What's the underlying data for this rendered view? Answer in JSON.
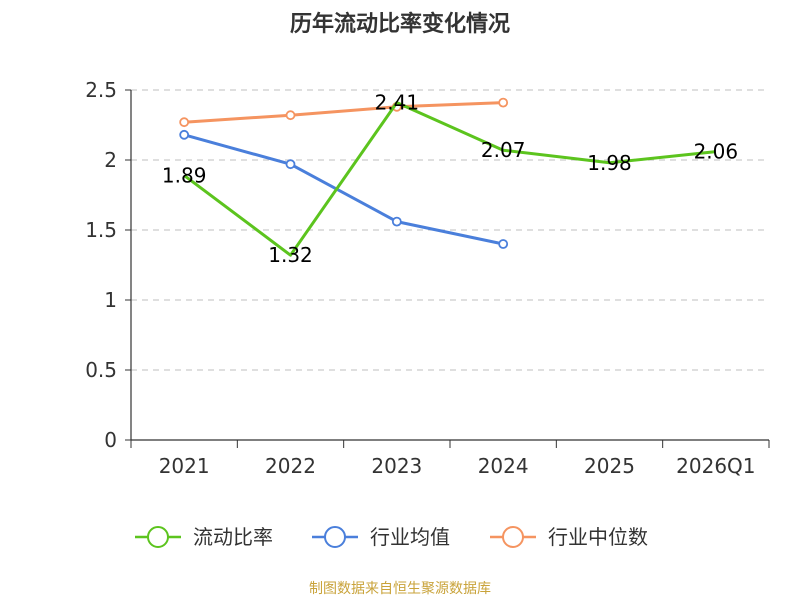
{
  "chart_data": {
    "type": "line",
    "title": "历年流动比率变化情况",
    "categories": [
      "2021",
      "2022",
      "2023",
      "2024",
      "2025",
      "2026Q1"
    ],
    "ylim": [
      0,
      2.5
    ],
    "yticks": [
      "0",
      "0.5",
      "1",
      "1.5",
      "2",
      "2.5"
    ],
    "grid": true,
    "legend_position": "bottom",
    "series": [
      {
        "name": "流动比率",
        "color": "#5cc41e",
        "values": [
          1.89,
          1.32,
          2.41,
          2.07,
          1.98,
          2.06
        ],
        "labels": [
          "1.89",
          "1.32",
          "2.41",
          "2.07",
          "1.98",
          "2.06"
        ],
        "markers": false
      },
      {
        "name": "行业均值",
        "color": "#4a7fdb",
        "values": [
          2.18,
          1.97,
          1.56,
          1.4,
          null,
          null
        ],
        "markers": true
      },
      {
        "name": "行业中位数",
        "color": "#f59460",
        "values": [
          2.27,
          2.32,
          2.38,
          2.41,
          null,
          null
        ],
        "markers": true
      }
    ]
  },
  "source": "制图数据来自恒生聚源数据库"
}
